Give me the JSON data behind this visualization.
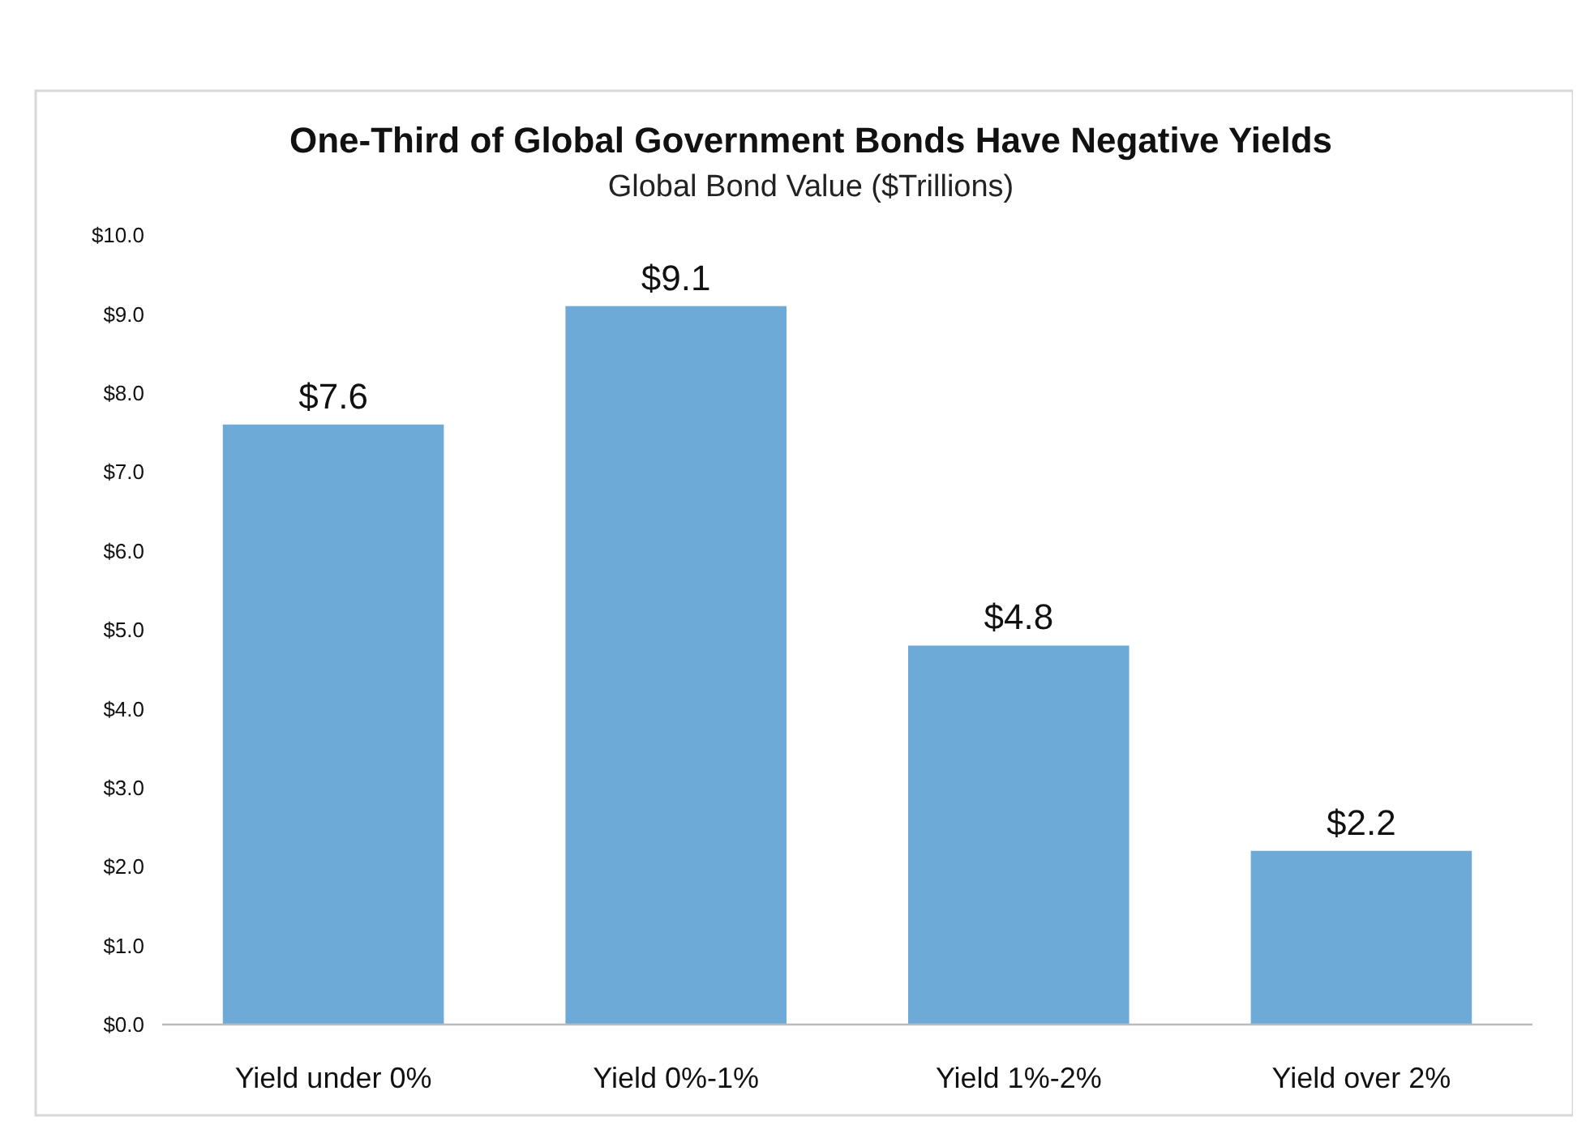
{
  "chart_data": {
    "type": "bar",
    "title": "One-Third of Global Government Bonds Have Negative Yields",
    "subtitle": "Global Bond Value ($Trillions)",
    "categories": [
      "Yield under 0%",
      "Yield 0%-1%",
      "Yield 1%-2%",
      "Yield over 2%"
    ],
    "values": [
      7.6,
      9.1,
      4.8,
      2.2
    ],
    "value_labels": [
      "$7.6",
      "$9.1",
      "$4.8",
      "$2.2"
    ],
    "color": "#6eaad8",
    "ylim": [
      0,
      10
    ],
    "yticks": [
      {
        "value": 0,
        "label": "$0.0"
      },
      {
        "value": 1,
        "label": "$1.0"
      },
      {
        "value": 2,
        "label": "$2.0"
      },
      {
        "value": 3,
        "label": "$3.0"
      },
      {
        "value": 4,
        "label": "$4.0"
      },
      {
        "value": 5,
        "label": "$5.0"
      },
      {
        "value": 6,
        "label": "$6.0"
      },
      {
        "value": 7,
        "label": "$7.0"
      },
      {
        "value": 8,
        "label": "$8.0"
      },
      {
        "value": 9,
        "label": "$9.0"
      },
      {
        "value": 10,
        "label": "$10.0"
      }
    ],
    "grid": false
  }
}
